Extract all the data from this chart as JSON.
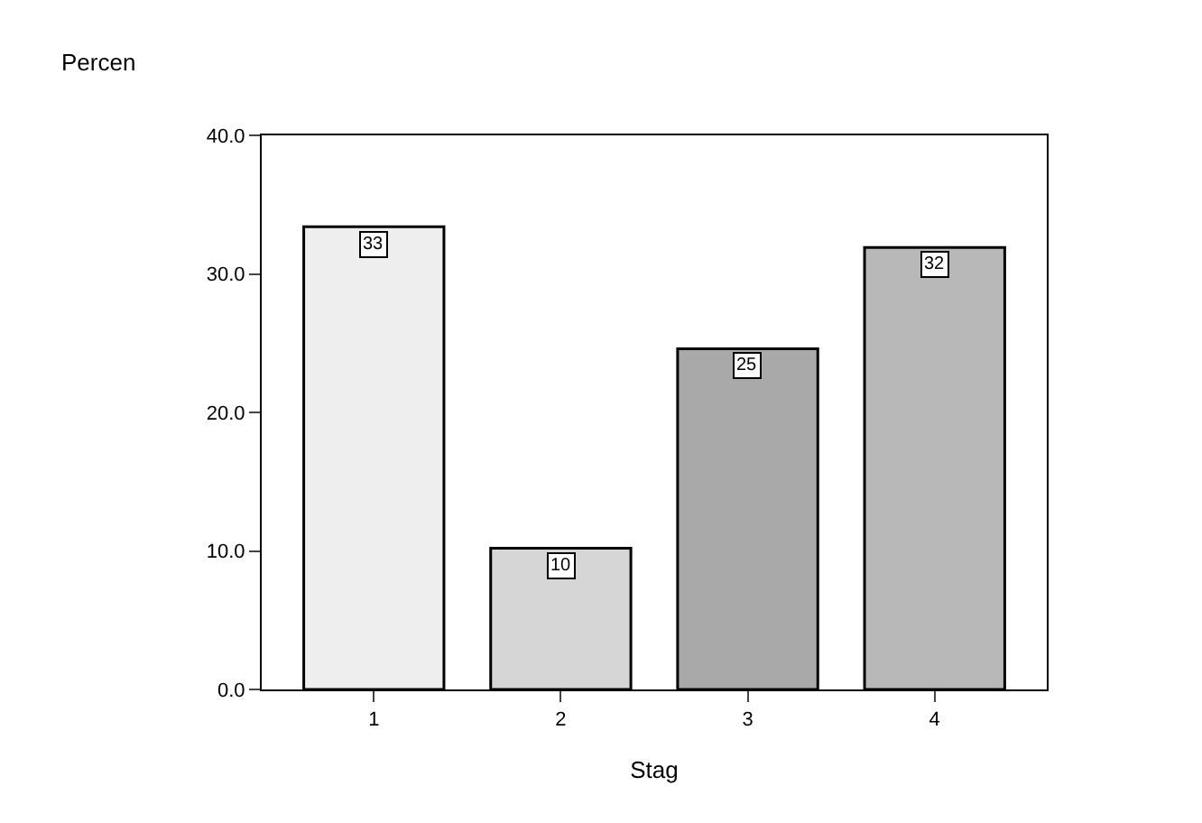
{
  "chart_data": {
    "type": "bar",
    "ylabel": "Percen",
    "xlabel": "Stag",
    "categories": [
      "1",
      "2",
      "3",
      "4"
    ],
    "values": [
      33.4,
      10.2,
      24.6,
      31.9
    ],
    "value_labels": [
      "33",
      "10",
      "25",
      "32"
    ],
    "colors": [
      "#eeeeee",
      "#d6d6d6",
      "#a9a9a9",
      "#b8b8b8"
    ],
    "ylim": [
      0,
      40
    ],
    "yticks": [
      {
        "value": 0,
        "label": "0.0"
      },
      {
        "value": 10,
        "label": "10.0"
      },
      {
        "value": 20,
        "label": "20.0"
      },
      {
        "value": 30,
        "label": "30.0"
      },
      {
        "value": 40,
        "label": "40.0"
      }
    ],
    "grid": false
  }
}
